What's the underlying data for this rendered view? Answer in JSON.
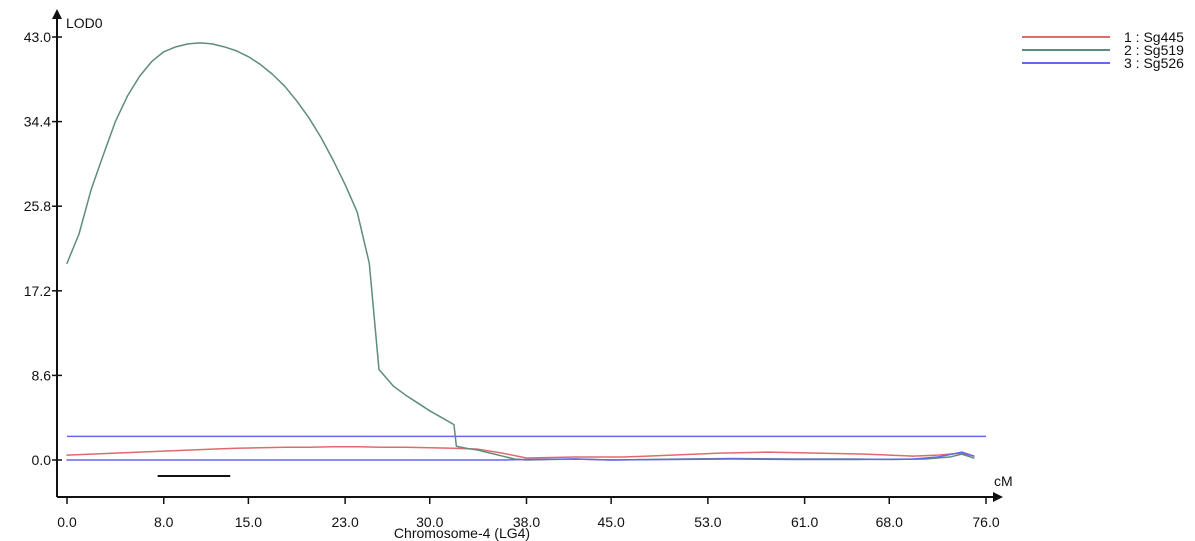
{
  "chart_data": {
    "type": "line",
    "title": "",
    "xlabel": "Chromosome-4 (LG4)",
    "ylabel": "LOD0",
    "x_unit_label": "cM",
    "xlim": [
      0,
      76
    ],
    "ylim": [
      0,
      43
    ],
    "x_ticks": [
      "0.0",
      "8.0",
      "15.0",
      "23.0",
      "30.0",
      "38.0",
      "45.0",
      "53.0",
      "61.0",
      "68.0",
      "76.0"
    ],
    "y_ticks": [
      "0.0",
      "8.6",
      "17.2",
      "25.8",
      "34.4",
      "43.0"
    ],
    "grid": false,
    "legend_position": "top-right",
    "threshold": {
      "value": 2.4,
      "color": "#6666ee"
    },
    "scale_bar": {
      "from": 7.5,
      "to": 13.5
    },
    "series": [
      {
        "name": "1 : Sg445",
        "color": "#e06a6a",
        "x": [
          0,
          2,
          4,
          6,
          8,
          10,
          12,
          14,
          16,
          18,
          20,
          22,
          24,
          26,
          28,
          30,
          32,
          34,
          36,
          38,
          42,
          46,
          50,
          54,
          58,
          62,
          66,
          70,
          72,
          74,
          75
        ],
        "y": [
          0.5,
          0.6,
          0.7,
          0.8,
          0.9,
          1.0,
          1.1,
          1.2,
          1.25,
          1.3,
          1.3,
          1.35,
          1.35,
          1.3,
          1.3,
          1.25,
          1.2,
          1.1,
          0.7,
          0.2,
          0.3,
          0.3,
          0.5,
          0.7,
          0.8,
          0.7,
          0.6,
          0.4,
          0.5,
          0.7,
          0.4
        ]
      },
      {
        "name": "2 : Sg519",
        "color": "#5e8c7e",
        "x": [
          0,
          1,
          2,
          3,
          4,
          5,
          6,
          7,
          8,
          9,
          10,
          11,
          12,
          13,
          14,
          15,
          16,
          17,
          18,
          19,
          20,
          21,
          22,
          23,
          24,
          25,
          25.8,
          27,
          28,
          29,
          30,
          31,
          32,
          32.2,
          33,
          34,
          35,
          36,
          37,
          38,
          40,
          42,
          45,
          48,
          51,
          55,
          60,
          65,
          68,
          71,
          73,
          74,
          75
        ],
        "y": [
          20,
          23,
          27.5,
          31,
          34.4,
          37,
          39,
          40.5,
          41.5,
          42,
          42.3,
          42.4,
          42.3,
          42,
          41.6,
          41,
          40.2,
          39.2,
          38,
          36.5,
          34.8,
          32.8,
          30.5,
          28,
          25.2,
          20,
          9.2,
          7.5,
          6.6,
          5.8,
          5.0,
          4.3,
          3.6,
          1.4,
          1.2,
          1.0,
          0.7,
          0.4,
          0.1,
          0.0,
          0.05,
          0.1,
          0.0,
          0.05,
          0.1,
          0.15,
          0.1,
          0.1,
          0.05,
          0.1,
          0.3,
          0.6,
          0.2
        ]
      },
      {
        "name": "3 : Sg526",
        "color": "#6666ee",
        "x": [
          0,
          10,
          20,
          30,
          36,
          38,
          42,
          45,
          50,
          55,
          60,
          65,
          70,
          72,
          74,
          75
        ],
        "y": [
          0.0,
          0.0,
          0.0,
          0.0,
          0.0,
          0.05,
          0.1,
          0.0,
          0.05,
          0.1,
          0.05,
          0.05,
          0.1,
          0.3,
          0.8,
          0.4
        ]
      }
    ]
  }
}
